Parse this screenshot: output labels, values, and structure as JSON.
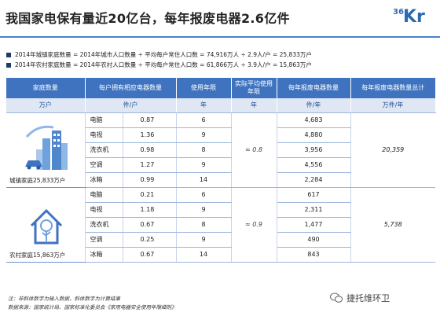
{
  "title": "我国家电保有量近20亿台，每年报废电器2.6亿件",
  "logo": {
    "num": "36",
    "letters": "Kr"
  },
  "formulas": [
    "2014年城镇家庭数量 = 2014年城市人口数量 ÷ 平均每户常住人口数 = 74,916万人 ÷ 2.9人/户 = 25,833万户",
    "2014年农村家庭数量 = 2014年农村人口数量 ÷ 平均每户常住人口数 = 61,866万人 ÷ 3.9人/户 = 15,863万户"
  ],
  "chart_data": {
    "type": "table",
    "columns": [
      "家庭数量",
      "每户拥有相应电器数量",
      "使用年限",
      "实际平均使用年限",
      "每年报废电器数量",
      "每年报废电器数量总计"
    ],
    "units": [
      "万户",
      "件/户",
      "年",
      "年",
      "件/年",
      "万件/年"
    ],
    "groups": [
      {
        "label": "城镇家庭25,833万户",
        "actual_avg_life": "≈ 0.8",
        "total": "20,359",
        "rows": [
          {
            "name": "电脑",
            "per_household": "0.87",
            "years": "6",
            "scrapped": "4,683"
          },
          {
            "name": "电视",
            "per_household": "1.36",
            "years": "9",
            "scrapped": "4,880"
          },
          {
            "name": "洗衣机",
            "per_household": "0.98",
            "years": "8",
            "scrapped": "3,956"
          },
          {
            "name": "空调",
            "per_household": "1.27",
            "years": "9",
            "scrapped": "4,556"
          },
          {
            "name": "冰箱",
            "per_household": "0.99",
            "years": "14",
            "scrapped": "2,284"
          }
        ]
      },
      {
        "label": "农村家庭15,863万户",
        "actual_avg_life": "≈ 0.9",
        "total": "5,738",
        "rows": [
          {
            "name": "电脑",
            "per_household": "0.21",
            "years": "6",
            "scrapped": "617"
          },
          {
            "name": "电视",
            "per_household": "1.18",
            "years": "9",
            "scrapped": "2,311"
          },
          {
            "name": "洗衣机",
            "per_household": "0.67",
            "years": "8",
            "scrapped": "1,477"
          },
          {
            "name": "空调",
            "per_household": "0.25",
            "years": "9",
            "scrapped": "490"
          },
          {
            "name": "冰箱",
            "per_household": "0.67",
            "years": "14",
            "scrapped": "843"
          }
        ]
      }
    ]
  },
  "footnotes": [
    "注：非斜体数字为输入数据，斜体数字为计算结果",
    "数据来源：国家统计局、国家标准化委员会《家用电器安全使用年限细则》"
  ],
  "watermark": "捷托维环卫",
  "colors": {
    "header_bg": "#3f73bf",
    "units_bg": "#dfe7f4",
    "accent": "#4b80c6",
    "border": "#9cb6dc"
  }
}
